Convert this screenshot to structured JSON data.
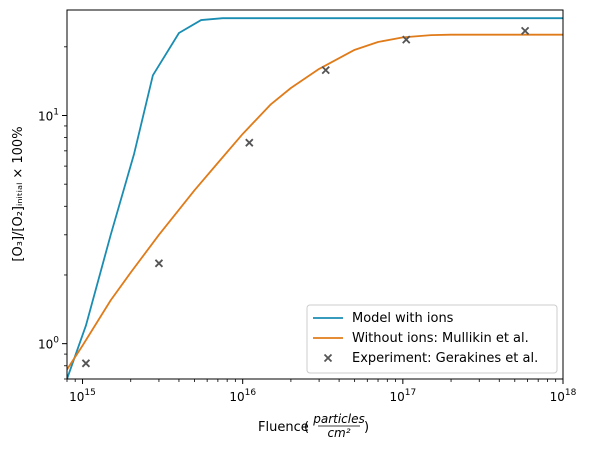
{
  "chart_data": {
    "type": "line",
    "xscale": "log",
    "yscale": "log",
    "xlim": [
      800000000000000.0,
      1e+18
    ],
    "ylim": [
      0.7,
      29
    ],
    "grid": false,
    "legend_position": "lower-right",
    "xlabel": "Fluence",
    "xlabel_unit_numerator": "particles",
    "xlabel_unit_denominator": "cm²",
    "ylabel": "[O₃]/[O₂]ᵢₙᵢₜᵢₐₗ × 100%",
    "x_ticks": [
      {
        "value": 1000000000000000.0,
        "base": "10",
        "exp": "15"
      },
      {
        "value": 1e+16,
        "base": "10",
        "exp": "16"
      },
      {
        "value": 1e+17,
        "base": "10",
        "exp": "17"
      },
      {
        "value": 1e+18,
        "base": "10",
        "exp": "18"
      }
    ],
    "y_ticks": [
      {
        "value": 1,
        "base": "10",
        "exp": "0"
      },
      {
        "value": 10,
        "base": "10",
        "exp": "1"
      }
    ],
    "series": [
      {
        "name": "Model with ions",
        "kind": "line",
        "color": "#1a8db2",
        "x": [
          800000000000000.0,
          1050000000000000.0,
          1500000000000000.0,
          2100000000000000.0,
          2750000000000000.0,
          4000000000000000.0,
          5500000000000000.0,
          7500000000000000.0,
          1e+16,
          3e+16,
          1e+17,
          1e+18
        ],
        "y": [
          0.7,
          1.2,
          3.0,
          6.8,
          15.0,
          23.0,
          26.2,
          26.7,
          26.7,
          26.7,
          26.7,
          26.7
        ]
      },
      {
        "name": "Without ions: Mullikin et al.",
        "kind": "line",
        "color": "#e07b1a",
        "x": [
          800000000000000.0,
          1000000000000000.0,
          1500000000000000.0,
          2000000000000000.0,
          3000000000000000.0,
          5000000000000000.0,
          7000000000000000.0,
          1e+16,
          1.5e+16,
          2e+16,
          3e+16,
          5e+16,
          7e+16,
          1e+17,
          1.5e+17,
          2e+17,
          3e+17,
          1e+18
        ],
        "y": [
          0.77,
          0.98,
          1.55,
          2.05,
          3.0,
          4.7,
          6.2,
          8.3,
          11.2,
          13.2,
          16.0,
          19.4,
          21.0,
          22.0,
          22.5,
          22.6,
          22.6,
          22.6
        ]
      },
      {
        "name": "Experiment: Gerakines et al.",
        "kind": "scatter",
        "marker": "x",
        "color": "#555555",
        "x": [
          1050000000000000.0,
          3000000000000000.0,
          1.1e+16,
          3.3e+16,
          1.05e+17,
          5.8e+17
        ],
        "y": [
          0.82,
          2.25,
          7.6,
          15.8,
          21.5,
          23.5
        ]
      }
    ]
  }
}
